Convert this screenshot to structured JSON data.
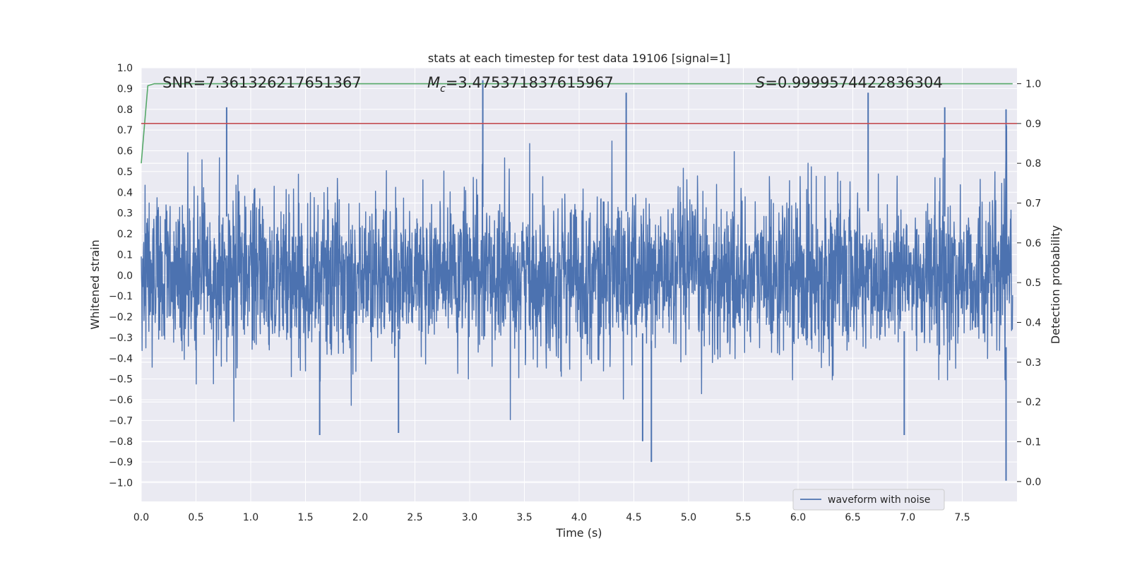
{
  "chart_data": {
    "type": "line",
    "title": "stats at each timestep for test data 19106 [signal=1]",
    "xlabel": "Time (s)",
    "ylabel": "Whitened strain",
    "y2label": "Detection probability",
    "xlim": [
      0.0,
      8.0
    ],
    "ylim": [
      -1.09,
      1.0
    ],
    "y2lim": [
      -0.05,
      1.04
    ],
    "x_ticks": [
      "0.0",
      "0.5",
      "1.0",
      "1.5",
      "2.0",
      "2.5",
      "3.0",
      "3.5",
      "4.0",
      "4.5",
      "5.0",
      "5.5",
      "6.0",
      "6.5",
      "7.0",
      "7.5"
    ],
    "y_ticks": [
      "1.0",
      "0.9",
      "0.8",
      "0.7",
      "0.6",
      "0.5",
      "0.4",
      "0.3",
      "0.2",
      "0.1",
      "0.0",
      "−0.1",
      "−0.2",
      "−0.3",
      "−0.4",
      "−0.5",
      "−0.6",
      "−0.7",
      "−0.8",
      "−0.9",
      "−1.0"
    ],
    "y2_ticks": [
      "1.0",
      "0.9",
      "0.8",
      "0.7",
      "0.6",
      "0.5",
      "0.4",
      "0.3",
      "0.2",
      "0.1",
      "0.0"
    ],
    "annotations": {
      "snr": "SNR=7.361326217651367",
      "mc_symbol": "M",
      "mc_sub": "c",
      "mc_value": "=3.475371837615967",
      "s_symbol": "S",
      "s_value": "=0.9999574422836304"
    },
    "legend": {
      "label": "waveform with noise",
      "position": "lower-right"
    },
    "series": [
      {
        "name": "waveform with noise",
        "axis": "left",
        "color": "#4c72b0",
        "style": "dense-noise",
        "typical_envelope": [
          -0.4,
          0.4
        ],
        "peaks": [
          {
            "x": 0.78,
            "y": 0.81
          },
          {
            "x": 3.12,
            "y": 0.94
          },
          {
            "x": 4.43,
            "y": 0.88
          },
          {
            "x": 6.64,
            "y": 0.88
          },
          {
            "x": 7.34,
            "y": 0.81
          },
          {
            "x": 7.9,
            "y": 0.8
          },
          {
            "x": 4.66,
            "y": -0.9
          },
          {
            "x": 7.9,
            "y": -0.99
          },
          {
            "x": 4.58,
            "y": -0.8
          },
          {
            "x": 1.63,
            "y": -0.77
          },
          {
            "x": 6.97,
            "y": -0.77
          },
          {
            "x": 2.35,
            "y": -0.76
          }
        ]
      },
      {
        "name": "detection probability",
        "axis": "right",
        "color": "#55a868",
        "x": [
          0.0,
          0.06,
          0.12,
          0.5,
          1.0,
          2.0,
          3.0,
          4.0,
          5.0,
          6.0,
          7.0,
          7.96
        ],
        "y": [
          0.8,
          0.995,
          1.0,
          1.0,
          1.0,
          1.0,
          1.0,
          1.0,
          1.0,
          1.0,
          1.0,
          1.0
        ]
      },
      {
        "name": "threshold",
        "axis": "right",
        "color": "#c44e52",
        "x": [
          0.0,
          8.0
        ],
        "y": [
          0.9,
          0.9
        ]
      }
    ]
  }
}
